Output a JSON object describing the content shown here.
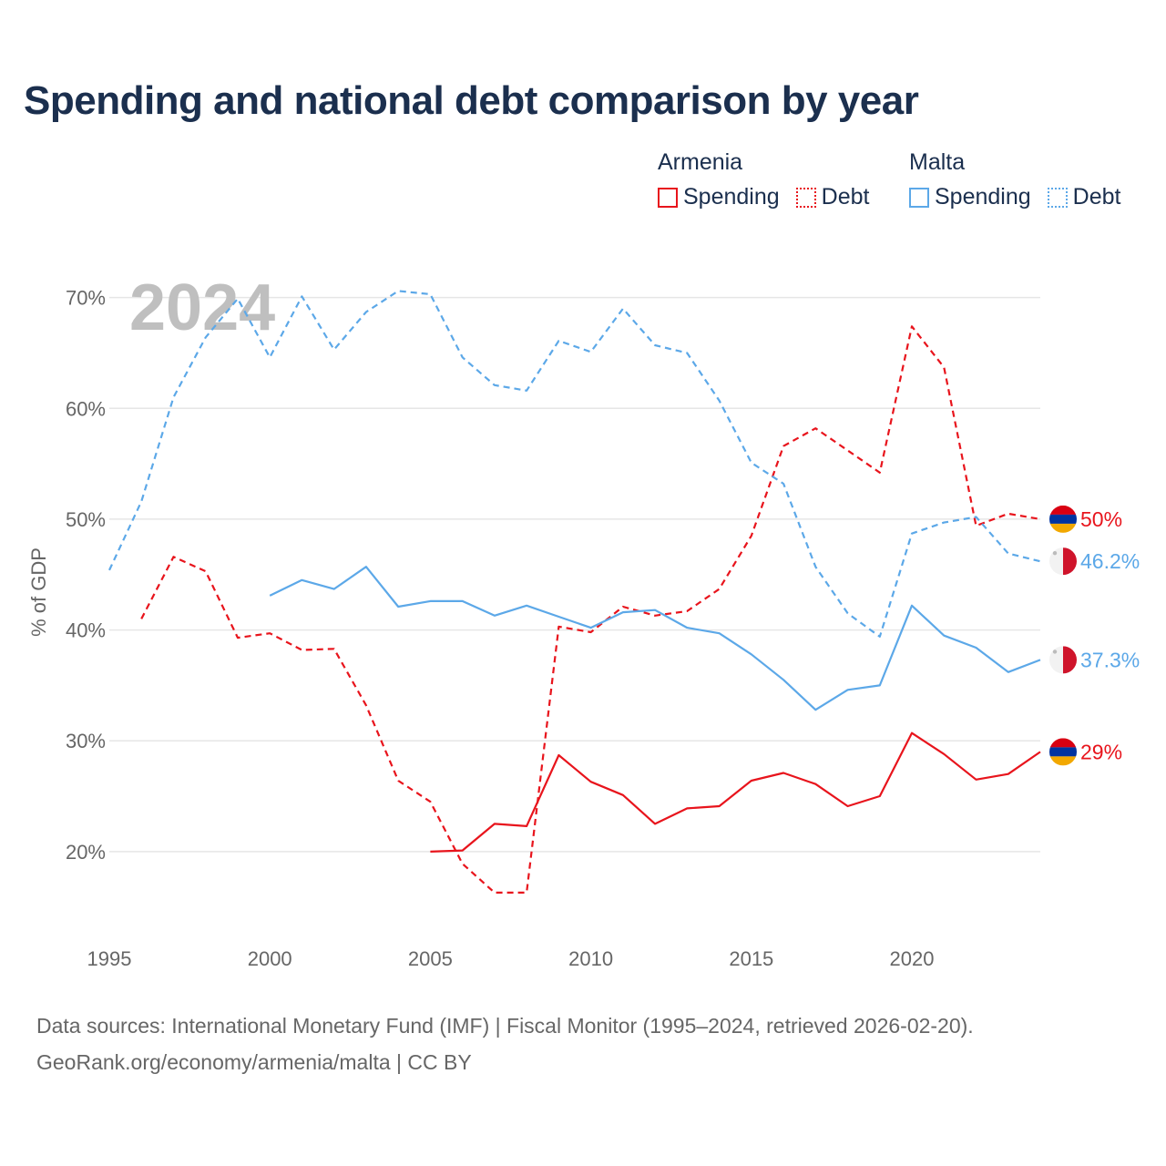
{
  "title": "Spending and national debt comparison by year",
  "legend": {
    "groups": [
      {
        "country": "Armenia",
        "spending_label": "Spending",
        "debt_label": "Debt",
        "color": "#e8141c"
      },
      {
        "country": "Malta",
        "spending_label": "Spending",
        "debt_label": "Debt",
        "color": "#5ca8e8"
      }
    ]
  },
  "chart_data": {
    "type": "line",
    "title": "Spending and national debt comparison by year",
    "year_label": "2024",
    "ylabel": "% of GDP",
    "xlabel": "",
    "xlim": [
      1995,
      2024
    ],
    "ylim": [
      13,
      74
    ],
    "x_ticks": [
      "1995",
      "2000",
      "2005",
      "2010",
      "2015",
      "2020"
    ],
    "y_ticks": [
      "20%",
      "30%",
      "40%",
      "50%",
      "60%",
      "70%"
    ],
    "grid": true,
    "series": [
      {
        "name": "Armenia Spending",
        "country": "Armenia",
        "kind": "spending",
        "style": "solid",
        "color": "#e8141c",
        "x": [
          2005,
          2006,
          2007,
          2008,
          2009,
          2010,
          2011,
          2012,
          2013,
          2014,
          2015,
          2016,
          2017,
          2018,
          2019,
          2020,
          2021,
          2022,
          2023,
          2024
        ],
        "values": [
          20.0,
          20.1,
          22.5,
          22.3,
          28.7,
          26.3,
          25.1,
          22.5,
          23.9,
          24.1,
          26.4,
          27.1,
          26.1,
          24.1,
          25.0,
          30.7,
          28.8,
          26.5,
          27.0,
          29.0
        ],
        "end_label": "29%"
      },
      {
        "name": "Armenia Debt",
        "country": "Armenia",
        "kind": "debt",
        "style": "dashed",
        "color": "#e8141c",
        "x": [
          1996,
          1997,
          1998,
          1999,
          2000,
          2001,
          2002,
          2003,
          2004,
          2005,
          2006,
          2007,
          2008,
          2009,
          2010,
          2011,
          2012,
          2013,
          2014,
          2015,
          2016,
          2017,
          2018,
          2019,
          2020,
          2021,
          2022,
          2023,
          2024
        ],
        "values": [
          41.0,
          46.6,
          45.3,
          39.3,
          39.7,
          38.2,
          38.3,
          33.2,
          26.4,
          24.5,
          18.9,
          16.3,
          16.3,
          40.3,
          39.8,
          42.1,
          41.3,
          41.7,
          43.7,
          48.5,
          56.6,
          58.2,
          56.2,
          54.2,
          67.4,
          63.7,
          49.4,
          50.5,
          50.0
        ],
        "end_label": "50%"
      },
      {
        "name": "Malta Spending",
        "country": "Malta",
        "kind": "spending",
        "style": "solid",
        "color": "#5ca8e8",
        "x": [
          2000,
          2001,
          2002,
          2003,
          2004,
          2005,
          2006,
          2007,
          2008,
          2009,
          2010,
          2011,
          2012,
          2013,
          2014,
          2015,
          2016,
          2017,
          2018,
          2019,
          2020,
          2021,
          2022,
          2023,
          2024
        ],
        "values": [
          43.1,
          44.5,
          43.7,
          45.7,
          42.1,
          42.6,
          42.6,
          41.3,
          42.2,
          41.2,
          40.2,
          41.6,
          41.8,
          40.2,
          39.7,
          37.8,
          35.5,
          32.8,
          34.6,
          35.0,
          42.2,
          39.5,
          38.4,
          36.2,
          37.3
        ],
        "end_label": "37.3%"
      },
      {
        "name": "Malta Debt",
        "country": "Malta",
        "kind": "debt",
        "style": "dashed",
        "color": "#5ca8e8",
        "x": [
          1995,
          1996,
          1997,
          1998,
          1999,
          2000,
          2001,
          2002,
          2003,
          2004,
          2005,
          2006,
          2007,
          2008,
          2009,
          2010,
          2011,
          2012,
          2013,
          2014,
          2015,
          2016,
          2017,
          2018,
          2019,
          2020,
          2021,
          2022,
          2023,
          2024
        ],
        "values": [
          45.4,
          51.6,
          61.0,
          66.4,
          69.9,
          64.6,
          70.1,
          65.3,
          68.7,
          70.6,
          70.3,
          64.6,
          62.1,
          61.6,
          66.1,
          65.1,
          69.0,
          65.7,
          65.0,
          60.7,
          55.1,
          53.2,
          45.7,
          41.5,
          39.4,
          48.7,
          49.7,
          50.2,
          46.9,
          46.2
        ],
        "end_label": "46.2%"
      }
    ]
  },
  "sources": {
    "line1": "Data sources: International Monetary Fund (IMF) | Fiscal Monitor (1995–2024, retrieved 2026-02-20).",
    "line2": "GeoRank.org/economy/armenia/malta | CC BY"
  },
  "colors": {
    "armenia": "#e8141c",
    "malta": "#5ca8e8",
    "title": "#1b2f4e",
    "grid": "#e6e6e6",
    "axis_text": "#666666",
    "year_watermark": "#bfbfbf"
  },
  "icons": {
    "armenia_flag": "armenia-flag-icon",
    "malta_flag": "malta-flag-icon"
  }
}
